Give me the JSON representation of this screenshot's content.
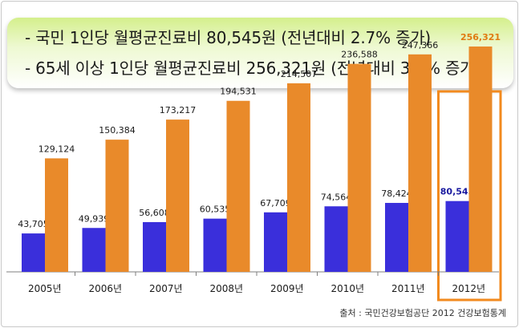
{
  "banner": {
    "line1": "- 국민 1인당 월평균진료비 80,545원 (전년대비 2.7% 증가)",
    "line2": "- 65세 이상 1인당 월평균진료비 256,321원 (전년대비 3.6% 증가)"
  },
  "source": "출처 : 국민건강보험공단  2012 건강보험통계",
  "colors": {
    "series_all": "#3a2fdb",
    "series_65": "#e98a2a",
    "highlight_label": "#1a1aa0",
    "highlight_label_65": "#e07a10",
    "highlight_box": "#f28a1e"
  },
  "chart_data": {
    "type": "bar",
    "categories": [
      "2005년",
      "2006년",
      "2007년",
      "2008년",
      "2009년",
      "2010년",
      "2011년",
      "2012년"
    ],
    "series": [
      {
        "values": [
          43705,
          49939,
          56608,
          60535,
          67709,
          74564,
          78424,
          80545
        ]
      },
      {
        "values": [
          129124,
          150384,
          173217,
          194531,
          214507,
          236588,
          247366,
          256321
        ]
      }
    ],
    "value_labels": [
      [
        "43,705",
        "49,939",
        "56,608",
        "60,535",
        "67,709",
        "74,564",
        "78,424",
        "80,545"
      ],
      [
        "129,124",
        "150,384",
        "173,217",
        "194,531",
        "214,507",
        "236,588",
        "247,366",
        "256,321"
      ]
    ],
    "highlight_category": "2012년",
    "ylim": [
      0,
      270000
    ],
    "grid": false,
    "legend": "none"
  }
}
